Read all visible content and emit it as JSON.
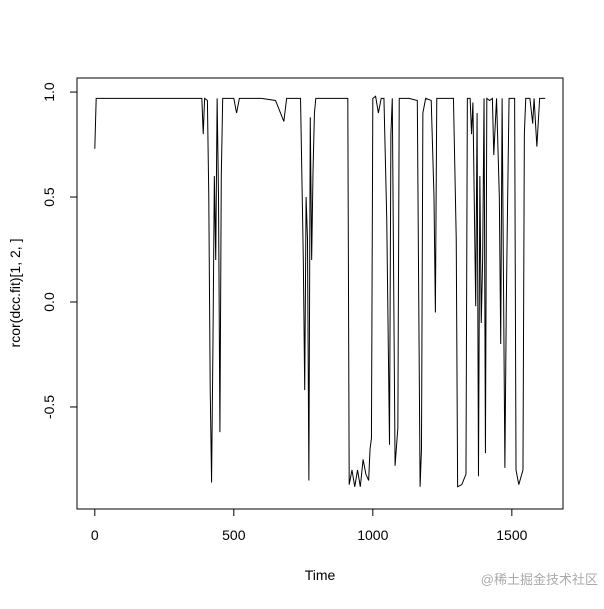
{
  "chart_data": {
    "type": "line",
    "xlabel": "Time",
    "ylabel": "rcor(dcc.fit)[1, 2, ]",
    "watermark": "@稀土掘金技术社区",
    "xlim": [
      -64,
      1684
    ],
    "ylim": [
      -0.986,
      1.067
    ],
    "xticks": [
      0,
      500,
      1000,
      1500
    ],
    "yticks": [
      {
        "value": -0.5,
        "label": "-0.5"
      },
      {
        "value": 0,
        "label": "0.0"
      },
      {
        "value": 0.5,
        "label": "0.5"
      },
      {
        "value": 1,
        "label": "1.0"
      }
    ],
    "color": "#000000",
    "x": [
      0,
      5,
      50,
      100,
      150,
      200,
      250,
      300,
      350,
      385,
      390,
      395,
      405,
      410,
      415,
      420,
      425,
      430,
      435,
      440,
      445,
      450,
      455,
      460,
      500,
      510,
      520,
      600,
      650,
      680,
      690,
      740,
      750,
      755,
      760,
      765,
      770,
      775,
      780,
      785,
      790,
      795,
      850,
      900,
      910,
      915,
      925,
      935,
      945,
      955,
      965,
      975,
      985,
      990,
      995,
      1000,
      1010,
      1020,
      1030,
      1040,
      1050,
      1060,
      1065,
      1070,
      1080,
      1090,
      1095,
      1130,
      1160,
      1170,
      1175,
      1180,
      1190,
      1210,
      1220,
      1225,
      1230,
      1250,
      1270,
      1290,
      1300,
      1305,
      1320,
      1335,
      1340,
      1350,
      1355,
      1360,
      1370,
      1375,
      1380,
      1385,
      1390,
      1395,
      1400,
      1405,
      1410,
      1420,
      1430,
      1435,
      1445,
      1455,
      1460,
      1465,
      1475,
      1480,
      1485,
      1490,
      1510,
      1515,
      1525,
      1540,
      1545,
      1550,
      1565,
      1575,
      1580,
      1590,
      1600,
      1620
    ],
    "values": [
      0.73,
      0.97,
      0.97,
      0.97,
      0.97,
      0.97,
      0.97,
      0.97,
      0.97,
      0.97,
      0.8,
      0.97,
      0.96,
      0.5,
      -0.4,
      -0.86,
      -0.2,
      0.6,
      0.2,
      0.97,
      0.5,
      -0.62,
      0.6,
      0.97,
      0.97,
      0.9,
      0.97,
      0.97,
      0.96,
      0.86,
      0.97,
      0.97,
      0.2,
      -0.42,
      0.5,
      0.3,
      -0.85,
      0.88,
      0.2,
      0.63,
      0.9,
      0.97,
      0.97,
      0.97,
      0.97,
      -0.87,
      -0.8,
      -0.88,
      -0.8,
      -0.88,
      -0.75,
      -0.82,
      -0.85,
      -0.7,
      -0.65,
      0.97,
      0.98,
      0.9,
      0.97,
      0.97,
      0.4,
      -0.68,
      0.8,
      0.97,
      -0.78,
      -0.6,
      0.97,
      0.97,
      0.96,
      -0.88,
      -0.7,
      0.9,
      0.97,
      0.96,
      0.5,
      -0.05,
      0.97,
      0.97,
      0.97,
      0.97,
      0.3,
      -0.88,
      -0.87,
      -0.82,
      0.97,
      0.97,
      0.8,
      0.95,
      -0.02,
      0.9,
      -0.83,
      0.6,
      -0.1,
      0.2,
      0.97,
      -0.72,
      0.97,
      0.96,
      0.97,
      0.7,
      0.97,
      0.5,
      -0.2,
      0.97,
      -0.79,
      -0.02,
      0.5,
      0.97,
      0.97,
      -0.8,
      -0.87,
      -0.8,
      0.8,
      0.97,
      0.97,
      0.85,
      0.97,
      0.74,
      0.97,
      0.97
    ]
  }
}
